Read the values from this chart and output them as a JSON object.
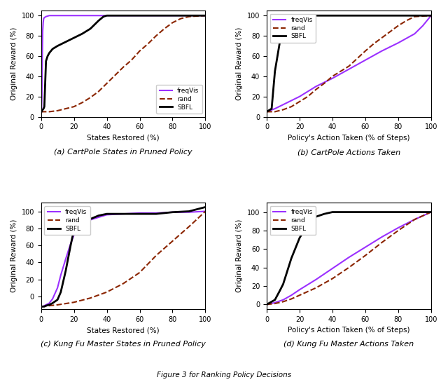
{
  "subplots": [
    {
      "id": "a",
      "xlabel": "States Restored (%)",
      "ylabel": "Original Reward (%)",
      "caption": "(a) CartPole States in Pruned Policy",
      "legend_loc": "lower right",
      "ylim": [
        0,
        105
      ],
      "xlim": [
        0,
        100
      ],
      "yticks": [
        0,
        20,
        40,
        60,
        80,
        100
      ],
      "xticks": [
        0,
        20,
        40,
        60,
        80,
        100
      ],
      "series": [
        {
          "label": "freqVis",
          "color": "#9B30FF",
          "linestyle": "solid",
          "linewidth": 1.5,
          "x": [
            0,
            0.2,
            0.5,
            0.8,
            1.0,
            1.3,
            1.6,
            2.0,
            3.0,
            5.0,
            10,
            20,
            50,
            100
          ],
          "y": [
            0,
            4,
            20,
            65,
            85,
            93,
            97,
            98,
            99,
            100,
            100,
            100,
            100,
            100
          ]
        },
        {
          "label": "rand",
          "color": "#8B2500",
          "linestyle": "dashed",
          "linewidth": 1.5,
          "x": [
            0,
            5,
            10,
            15,
            20,
            25,
            30,
            35,
            40,
            45,
            50,
            55,
            60,
            65,
            70,
            75,
            80,
            85,
            90,
            100
          ],
          "y": [
            5,
            5,
            6,
            8,
            10,
            14,
            19,
            25,
            33,
            41,
            49,
            56,
            65,
            72,
            80,
            87,
            93,
            97,
            99,
            100
          ]
        },
        {
          "label": "SBFL",
          "color": "#000000",
          "linestyle": "solid",
          "linewidth": 2.0,
          "x": [
            0,
            0.3,
            0.6,
            1.0,
            1.5,
            2.0,
            3.0,
            4.0,
            5.0,
            7.0,
            10,
            15,
            20,
            25,
            30,
            35,
            38,
            40,
            50,
            100
          ],
          "y": [
            5,
            5,
            6,
            7,
            8,
            10,
            55,
            60,
            63,
            67,
            70,
            74,
            78,
            82,
            87,
            95,
            99,
            100,
            100,
            100
          ]
        }
      ]
    },
    {
      "id": "b",
      "xlabel": "Policy's Action Taken (% of Steps)",
      "ylabel": "Original Reward (%)",
      "caption": "(b) CartPole Actions Taken",
      "legend_loc": "upper left",
      "ylim": [
        0,
        105
      ],
      "xlim": [
        0,
        100
      ],
      "yticks": [
        0,
        20,
        40,
        60,
        80,
        100
      ],
      "xticks": [
        0,
        20,
        40,
        60,
        80,
        100
      ],
      "series": [
        {
          "label": "freqVis",
          "color": "#9B30FF",
          "linestyle": "solid",
          "linewidth": 1.5,
          "x": [
            0,
            5,
            10,
            15,
            20,
            25,
            30,
            35,
            40,
            50,
            60,
            70,
            80,
            90,
            95,
            100
          ],
          "y": [
            5,
            8,
            12,
            16,
            20,
            25,
            30,
            34,
            38,
            47,
            56,
            65,
            73,
            82,
            90,
            100
          ]
        },
        {
          "label": "rand",
          "color": "#8B2500",
          "linestyle": "dashed",
          "linewidth": 1.5,
          "x": [
            0,
            5,
            10,
            15,
            20,
            25,
            30,
            35,
            40,
            50,
            60,
            65,
            70,
            75,
            80,
            85,
            90,
            100
          ],
          "y": [
            5,
            5,
            7,
            10,
            15,
            20,
            27,
            33,
            40,
            50,
            65,
            72,
            78,
            84,
            90,
            95,
            99,
            100
          ]
        },
        {
          "label": "SBFL",
          "color": "#000000",
          "linestyle": "solid",
          "linewidth": 2.0,
          "x": [
            0,
            1,
            2,
            3,
            5,
            8,
            10,
            12,
            15,
            17,
            20,
            25,
            30,
            50,
            100
          ],
          "y": [
            5,
            6,
            7,
            8,
            45,
            74,
            78,
            83,
            88,
            95,
            100,
            100,
            100,
            100,
            100
          ]
        }
      ]
    },
    {
      "id": "c",
      "xlabel": "States Restored (%)",
      "ylabel": "Original Reward (%)",
      "caption": "(c) Kung Fu Master States in Pruned Policy",
      "legend_loc": "upper left",
      "ylim": [
        -15,
        110
      ],
      "xlim": [
        0,
        100
      ],
      "yticks": [
        0,
        20,
        40,
        60,
        80,
        100
      ],
      "xticks": [
        0,
        20,
        40,
        60,
        80,
        100
      ],
      "series": [
        {
          "label": "freqVis",
          "color": "#9B30FF",
          "linestyle": "solid",
          "linewidth": 1.5,
          "x": [
            0,
            1,
            2,
            3,
            5,
            7,
            10,
            12,
            15,
            18,
            20,
            25,
            30,
            35,
            40,
            50,
            60,
            70,
            80,
            90,
            100
          ],
          "y": [
            -12,
            -12,
            -11,
            -10,
            -8,
            -3,
            10,
            25,
            44,
            62,
            72,
            84,
            90,
            93,
            96,
            97,
            98,
            98,
            99,
            99,
            100
          ]
        },
        {
          "label": "rand",
          "color": "#8B2500",
          "linestyle": "dashed",
          "linewidth": 1.5,
          "x": [
            0,
            5,
            10,
            20,
            30,
            40,
            50,
            60,
            65,
            70,
            80,
            90,
            100
          ],
          "y": [
            -12,
            -11,
            -10,
            -7,
            -2,
            5,
            15,
            28,
            38,
            48,
            65,
            82,
            100
          ]
        },
        {
          "label": "SBFL",
          "color": "#000000",
          "linestyle": "solid",
          "linewidth": 2.0,
          "x": [
            0,
            1,
            2,
            3,
            5,
            7,
            10,
            12,
            15,
            18,
            20,
            22,
            25,
            30,
            35,
            40,
            50,
            60,
            70,
            80,
            90,
            100
          ],
          "y": [
            -12,
            -12,
            -12,
            -11,
            -10,
            -8,
            -4,
            5,
            30,
            60,
            78,
            84,
            87,
            91,
            95,
            97,
            97,
            97,
            97,
            99,
            100,
            105
          ]
        }
      ]
    },
    {
      "id": "d",
      "xlabel": "Policy's Action Taken (% of Steps)",
      "ylabel": "Original Reward (%)",
      "caption": "(d) Kung Fu Master Actions Taken",
      "legend_loc": "upper left",
      "ylim": [
        -5,
        110
      ],
      "xlim": [
        0,
        100
      ],
      "yticks": [
        0,
        20,
        40,
        60,
        80,
        100
      ],
      "xticks": [
        0,
        20,
        40,
        60,
        80,
        100
      ],
      "series": [
        {
          "label": "freqVis",
          "color": "#9B30FF",
          "linestyle": "solid",
          "linewidth": 1.5,
          "x": [
            0,
            5,
            10,
            15,
            20,
            30,
            40,
            50,
            60,
            70,
            80,
            90,
            100
          ],
          "y": [
            0,
            2,
            5,
            10,
            16,
            27,
            39,
            51,
            62,
            73,
            83,
            92,
            100
          ]
        },
        {
          "label": "rand",
          "color": "#8B2500",
          "linestyle": "dashed",
          "linewidth": 1.5,
          "x": [
            0,
            5,
            10,
            15,
            20,
            30,
            40,
            50,
            60,
            70,
            80,
            90,
            100
          ],
          "y": [
            0,
            1,
            3,
            6,
            10,
            18,
            28,
            40,
            53,
            67,
            80,
            92,
            100
          ]
        },
        {
          "label": "SBFL",
          "color": "#000000",
          "linestyle": "solid",
          "linewidth": 2.0,
          "x": [
            0,
            2,
            5,
            8,
            10,
            15,
            20,
            25,
            30,
            35,
            40,
            50,
            60,
            70,
            80,
            90,
            100
          ],
          "y": [
            0,
            2,
            5,
            15,
            22,
            50,
            72,
            87,
            95,
            98,
            100,
            100,
            100,
            100,
            100,
            100,
            100
          ]
        }
      ]
    }
  ],
  "figure_bottom_caption": "Figure 3 for Ranking Policy Decisions"
}
